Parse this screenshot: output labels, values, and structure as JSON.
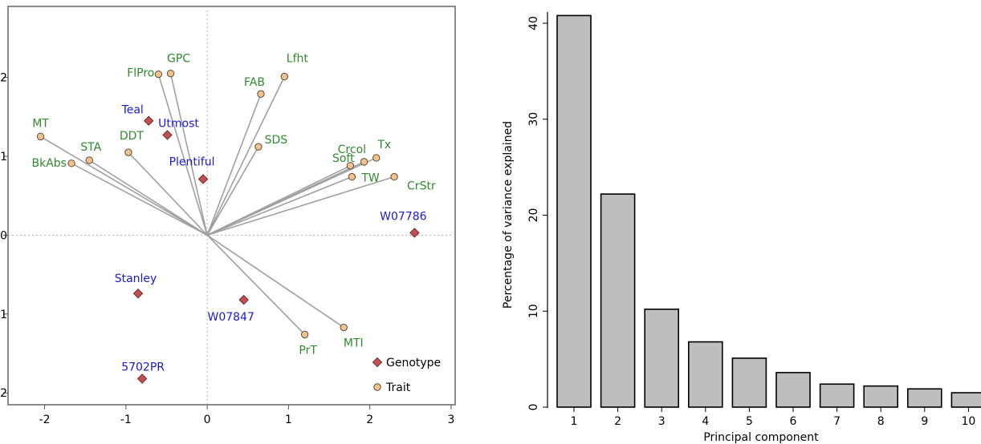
{
  "chart_data": [
    {
      "type": "scatter",
      "subtype": "biplot",
      "title": "",
      "xlabel": "",
      "ylabel": "",
      "xlim": [
        -2.45,
        3.05
      ],
      "ylim": [
        -2.15,
        2.9
      ],
      "xticks": [
        -2,
        -1,
        0,
        1,
        2,
        3
      ],
      "yticks": [
        -2,
        -1,
        0,
        1,
        2
      ],
      "xtick_labels": [
        "-2",
        "-1",
        "0",
        "1",
        "2",
        "3"
      ],
      "ytick_labels": [
        "-2",
        "-1",
        "0",
        "1",
        "2"
      ],
      "grid": false,
      "reference_lines": "dotted lines at x=0 and y=0",
      "legend_position": "bottom-right",
      "legend": [
        {
          "label": "Genotype",
          "marker": "diamond",
          "color": "#c0504d"
        },
        {
          "label": "Trait",
          "marker": "circle",
          "color": "#f2c28e"
        }
      ],
      "colors": {
        "genotype_marker": "#c0504d",
        "genotype_label": "#1a1ad0",
        "trait_marker": "#f2c28e",
        "trait_label": "#2e8b2e",
        "vector": "#a0a0a0"
      },
      "genotypes": [
        {
          "name": "Teal",
          "x": -0.72,
          "y": 1.45
        },
        {
          "name": "Utmost",
          "x": -0.49,
          "y": 1.27
        },
        {
          "name": "Plentiful",
          "x": -0.05,
          "y": 0.71
        },
        {
          "name": "W07786",
          "x": 2.55,
          "y": 0.03
        },
        {
          "name": "Stanley",
          "x": -0.85,
          "y": -0.74
        },
        {
          "name": "W07847",
          "x": 0.45,
          "y": -0.82
        },
        {
          "name": "5702PR",
          "x": -0.8,
          "y": -1.82
        }
      ],
      "traits": [
        {
          "name": "GPC",
          "x": -0.45,
          "y": 2.05
        },
        {
          "name": "FlPro",
          "x": -0.6,
          "y": 2.04
        },
        {
          "name": "Lfht",
          "x": 0.95,
          "y": 2.01
        },
        {
          "name": "FAB",
          "x": 0.66,
          "y": 1.79
        },
        {
          "name": "MT",
          "x": -2.05,
          "y": 1.25
        },
        {
          "name": "STA",
          "x": -1.45,
          "y": 0.95
        },
        {
          "name": "BkAbs",
          "x": -1.67,
          "y": 0.91
        },
        {
          "name": "DDT",
          "x": -0.97,
          "y": 1.05
        },
        {
          "name": "SDS",
          "x": 0.63,
          "y": 1.12
        },
        {
          "name": "Crcol",
          "x": 1.76,
          "y": 0.88
        },
        {
          "name": "Tx",
          "x": 2.08,
          "y": 0.98
        },
        {
          "name": "Soft",
          "x": 1.93,
          "y": 0.93
        },
        {
          "name": "TW",
          "x": 1.78,
          "y": 0.74
        },
        {
          "name": "CrStr",
          "x": 2.3,
          "y": 0.74
        },
        {
          "name": "MTI",
          "x": 1.68,
          "y": -1.17
        },
        {
          "name": "PrT",
          "x": 1.2,
          "y": -1.26
        }
      ]
    },
    {
      "type": "bar",
      "title": "",
      "xlabel": "Principal component",
      "ylabel": "Percentage of variance explained",
      "categories": [
        "1",
        "2",
        "3",
        "4",
        "5",
        "6",
        "7",
        "8",
        "9",
        "10"
      ],
      "values": [
        40.8,
        22.2,
        10.2,
        6.8,
        5.1,
        3.6,
        2.4,
        2.2,
        1.9,
        1.5
      ],
      "ylim": [
        0,
        41
      ],
      "yticks": [
        0,
        10,
        20,
        30,
        40
      ],
      "ytick_labels": [
        "0",
        "10",
        "20",
        "30",
        "40"
      ],
      "grid": false,
      "colors": {
        "bar": "#bebebe",
        "bar_edge": "#000000"
      }
    }
  ]
}
